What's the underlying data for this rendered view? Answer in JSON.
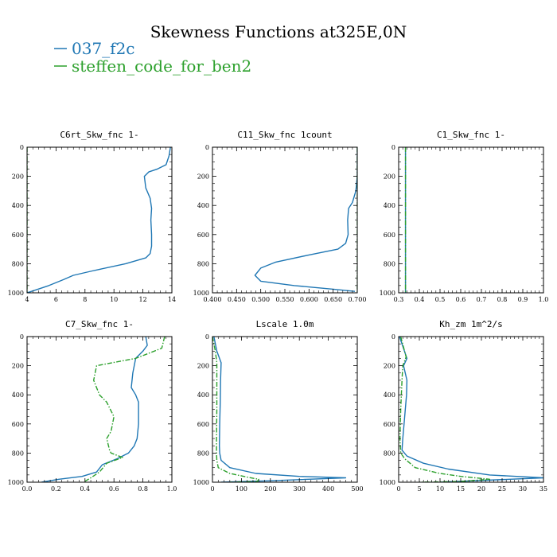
{
  "figure": {
    "title": "Skewness Functions at325E,0N"
  },
  "legend": [
    {
      "label": "037_f2c",
      "color": "#1f77b4",
      "style": "solid"
    },
    {
      "label": "steffen_code_for_ben2",
      "color": "#2ca02c",
      "style": "dashdot"
    }
  ],
  "chart_data": [
    {
      "type": "line",
      "title": "C6rt_Skw_fnc  1-",
      "xlim": [
        4,
        14
      ],
      "ylim": [
        1000,
        0
      ],
      "xticks": [
        4,
        6,
        8,
        10,
        12,
        14
      ],
      "xtick_labels": [
        "4",
        "6",
        "8",
        "10",
        "12",
        "14"
      ],
      "yticks": [
        0,
        200,
        400,
        600,
        800,
        1000
      ],
      "ytick_labels": [
        "0",
        "200",
        "400",
        "600",
        "800",
        "1000"
      ],
      "series": [
        {
          "name": "037_f2c",
          "x": [
            13.9,
            13.8,
            13.6,
            13.0,
            12.4,
            12.1,
            12.2,
            12.5,
            12.6,
            12.55,
            12.6,
            12.6,
            12.5,
            12.2,
            10.8,
            8.5,
            7.2,
            6.5,
            5.5,
            4.3,
            4.0
          ],
          "y": [
            0,
            60,
            120,
            150,
            170,
            200,
            280,
            350,
            420,
            500,
            600,
            680,
            730,
            760,
            800,
            850,
            880,
            910,
            950,
            990,
            1000
          ]
        },
        {
          "name": "steffen_code_for_ben2",
          "x": [
            4.0,
            4.0
          ],
          "y": [
            0,
            1000
          ]
        }
      ]
    },
    {
      "type": "line",
      "title": "C11_Skw_fnc  1count",
      "xlim": [
        0.4,
        0.7
      ],
      "ylim": [
        1000,
        0
      ],
      "xticks": [
        0.4,
        0.45,
        0.5,
        0.55,
        0.6,
        0.65,
        0.7
      ],
      "xtick_labels": [
        "0.400",
        "0.450",
        "0.500",
        "0.550",
        "0.600",
        "0.650",
        "0.700"
      ],
      "yticks": [
        0,
        200,
        400,
        600,
        800,
        1000
      ],
      "ytick_labels": [
        "0",
        "200",
        "400",
        "600",
        "800",
        "1000"
      ],
      "series": [
        {
          "name": "037_f2c",
          "x": [
            0.7,
            0.7,
            0.697,
            0.69,
            0.682,
            0.68,
            0.681,
            0.676,
            0.66,
            0.6,
            0.53,
            0.5,
            0.488,
            0.5,
            0.57,
            0.65,
            0.695
          ],
          "y": [
            0,
            200,
            300,
            380,
            420,
            500,
            600,
            660,
            700,
            740,
            790,
            830,
            880,
            920,
            950,
            975,
            990
          ]
        },
        {
          "name": "steffen_code_for_ben2",
          "x": [
            0.7,
            0.7
          ],
          "y": [
            0,
            1000
          ]
        }
      ]
    },
    {
      "type": "line",
      "title": "C1_Skw_fnc  1-",
      "xlim": [
        0.3,
        1.0
      ],
      "ylim": [
        1000,
        0
      ],
      "xticks": [
        0.3,
        0.4,
        0.5,
        0.6,
        0.7,
        0.8,
        0.9,
        1.0
      ],
      "xtick_labels": [
        "0.3",
        "0.4",
        "0.5",
        "0.6",
        "0.7",
        "0.8",
        "0.9",
        "1.0"
      ],
      "yticks": [
        0,
        200,
        400,
        600,
        800,
        1000
      ],
      "ytick_labels": [
        "0",
        "200",
        "400",
        "600",
        "800",
        "1000"
      ],
      "series": [
        {
          "name": "037_f2c",
          "x": [
            0.333,
            0.333
          ],
          "y": [
            0,
            1000
          ]
        },
        {
          "name": "steffen_code_for_ben2",
          "x": [
            0.333,
            0.333
          ],
          "y": [
            0,
            1000
          ]
        }
      ]
    },
    {
      "type": "line",
      "title": "C7_Skw_fnc  1-",
      "xlim": [
        0.0,
        1.0
      ],
      "ylim": [
        1000,
        0
      ],
      "xticks": [
        0,
        0.2,
        0.4,
        0.6,
        0.8,
        1.0
      ],
      "xtick_labels": [
        "0.0",
        "0.2",
        "0.4",
        "0.6",
        "0.8",
        "1.0"
      ],
      "yticks": [
        0,
        200,
        400,
        600,
        800,
        1000
      ],
      "ytick_labels": [
        "0",
        "200",
        "400",
        "600",
        "800",
        "1000"
      ],
      "series": [
        {
          "name": "037_f2c",
          "x": [
            0.82,
            0.83,
            0.8,
            0.75,
            0.73,
            0.72,
            0.75,
            0.77,
            0.77,
            0.76,
            0.74,
            0.7,
            0.62,
            0.52,
            0.48,
            0.38,
            0.22,
            0.1
          ],
          "y": [
            0,
            60,
            100,
            150,
            250,
            350,
            400,
            450,
            600,
            700,
            750,
            800,
            840,
            880,
            930,
            960,
            980,
            1000
          ]
        },
        {
          "name": "steffen_code_for_ben2",
          "x": [
            0.95,
            0.93,
            0.75,
            0.48,
            0.46,
            0.5,
            0.55,
            0.6,
            0.58,
            0.55,
            0.57,
            0.58,
            0.66,
            0.55,
            0.5,
            0.44,
            0.39
          ],
          "y": [
            0,
            80,
            150,
            200,
            300,
            400,
            450,
            550,
            650,
            700,
            780,
            800,
            830,
            870,
            930,
            970,
            1000
          ]
        }
      ]
    },
    {
      "type": "line",
      "title": "Lscale  1.0m",
      "xlim": [
        0,
        500
      ],
      "ylim": [
        1000,
        0
      ],
      "xticks": [
        0,
        100,
        200,
        300,
        400,
        500
      ],
      "xtick_labels": [
        "0",
        "100",
        "200",
        "300",
        "400",
        "500"
      ],
      "yticks": [
        0,
        200,
        400,
        600,
        800,
        1000
      ],
      "ytick_labels": [
        "0",
        "200",
        "400",
        "600",
        "800",
        "1000"
      ],
      "series": [
        {
          "name": "037_f2c",
          "x": [
            5,
            15,
            30,
            28,
            27,
            25,
            24,
            25,
            30,
            60,
            150,
            300,
            460,
            200,
            30
          ],
          "y": [
            0,
            100,
            180,
            300,
            450,
            600,
            750,
            800,
            850,
            900,
            940,
            960,
            970,
            990,
            1000
          ]
        },
        {
          "name": "steffen_code_for_ben2",
          "x": [
            0,
            10,
            15,
            15,
            15,
            14,
            14,
            15,
            20,
            60,
            120,
            160,
            155,
            60
          ],
          "y": [
            0,
            100,
            180,
            300,
            500,
            700,
            800,
            850,
            900,
            940,
            965,
            980,
            995,
            1000
          ]
        }
      ]
    },
    {
      "type": "line",
      "title": "Kh_zm  1m^2/s",
      "xlim": [
        0,
        35
      ],
      "ylim": [
        1000,
        0
      ],
      "xticks": [
        0,
        5,
        10,
        15,
        20,
        25,
        30,
        35
      ],
      "xtick_labels": [
        "0",
        "5",
        "10",
        "15",
        "20",
        "25",
        "30",
        "35"
      ],
      "yticks": [
        0,
        200,
        400,
        600,
        800,
        1000
      ],
      "ytick_labels": [
        "0",
        "200",
        "400",
        "600",
        "800",
        "1000"
      ],
      "series": [
        {
          "name": "037_f2c",
          "x": [
            0.2,
            2.0,
            1.2,
            2.0,
            1.9,
            1.3,
            1.0,
            0.8,
            2.0,
            6.0,
            12.0,
            22.0,
            35.0,
            10.0
          ],
          "y": [
            0,
            150,
            200,
            300,
            400,
            600,
            700,
            780,
            820,
            870,
            910,
            950,
            970,
            1000
          ]
        },
        {
          "name": "steffen_code_for_ben2",
          "x": [
            0.5,
            1.8,
            1.0,
            0.8,
            0.5,
            0.3,
            0.5,
            1.5,
            4.0,
            10.0,
            15.0,
            22.0,
            15.0,
            5.0
          ],
          "y": [
            0,
            140,
            200,
            300,
            500,
            700,
            800,
            840,
            900,
            940,
            960,
            980,
            995,
            1000
          ]
        }
      ]
    }
  ]
}
